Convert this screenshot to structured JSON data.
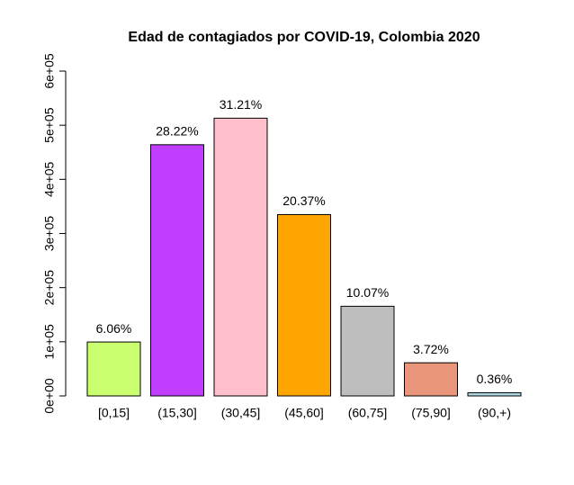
{
  "chart_data": {
    "type": "bar",
    "title": "Edad de contagiados por COVID-19, Colombia 2020",
    "categories": [
      "[0,15]",
      "(15,30]",
      "(30,45]",
      "(45,60]",
      "(60,75]",
      "(75,90]",
      "(90,+)"
    ],
    "values": [
      99600,
      464000,
      513000,
      335000,
      165600,
      61200,
      5900
    ],
    "annotations": [
      "6.06%",
      "28.22%",
      "31.21%",
      "20.37%",
      "10.07%",
      "3.72%",
      "0.36%"
    ],
    "colors": [
      "#caff70",
      "#bf3eff",
      "#ffc0cb",
      "#ffa500",
      "#bebebe",
      "#e9967a",
      "#add8e6"
    ],
    "ylim": [
      0,
      600000
    ],
    "yticks": [
      {
        "value": 0,
        "label": "0e+00"
      },
      {
        "value": 100000,
        "label": "1e+05"
      },
      {
        "value": 200000,
        "label": "2e+05"
      },
      {
        "value": 300000,
        "label": "3e+05"
      },
      {
        "value": 400000,
        "label": "4e+05"
      },
      {
        "value": 500000,
        "label": "5e+05"
      },
      {
        "value": 600000,
        "label": "6e+05"
      }
    ]
  }
}
